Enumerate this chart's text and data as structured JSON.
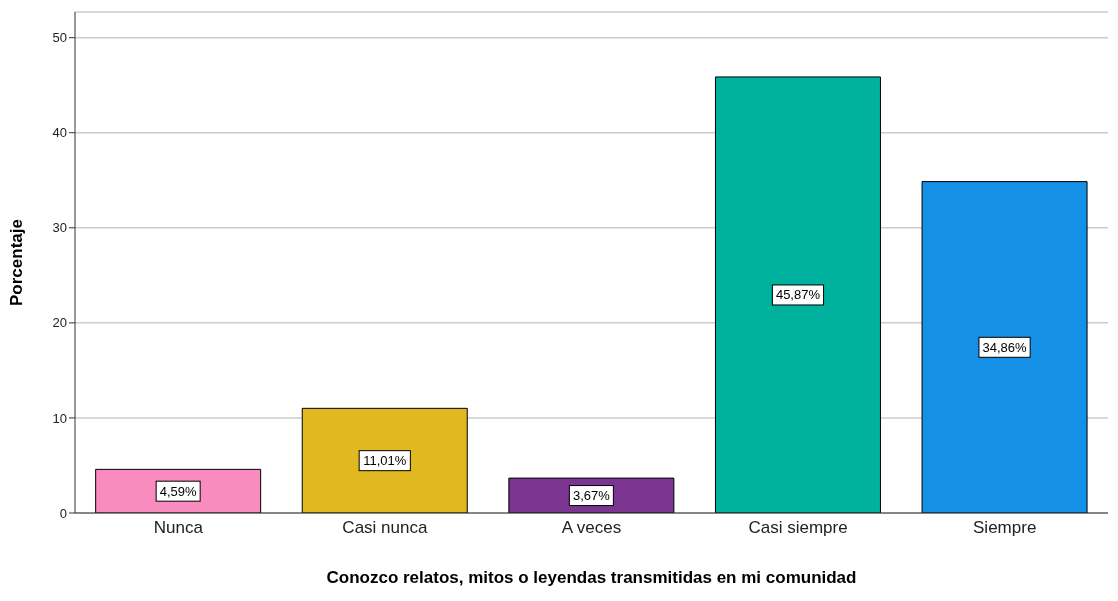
{
  "chart_data": {
    "type": "bar",
    "xlabel": "Conozco relatos, mitos o leyendas transmitidas en mi comunidad",
    "ylabel": "Porcentaje",
    "categories": [
      "Nunca",
      "Casi nunca",
      "A veces",
      "Casi siempre",
      "Siempre"
    ],
    "values": [
      4.59,
      11.01,
      3.67,
      45.87,
      34.86
    ],
    "colors": [
      "#f98bbf",
      "#e0b820",
      "#7b3590",
      "#00b29e",
      "#1490e6"
    ],
    "value_labels": [
      "4,59%",
      "11,01%",
      "3,67%",
      "45,87%",
      "34,86%"
    ],
    "ylim": [
      0,
      52.7
    ],
    "yticks": [
      0,
      10,
      20,
      30,
      40,
      50
    ],
    "grid": "y"
  }
}
